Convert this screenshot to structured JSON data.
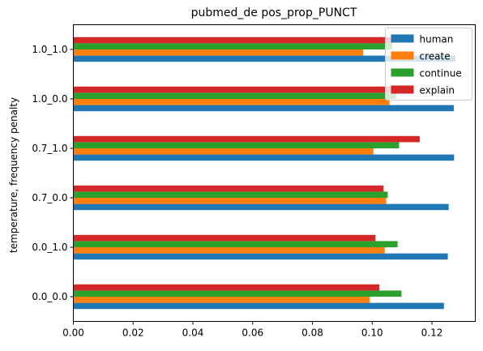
{
  "chart_data": {
    "type": "bar",
    "orientation": "horizontal",
    "title": "pubmed_de pos_prop_PUNCT",
    "xlabel": "",
    "ylabel": "temperature, frequency penalty",
    "categories": [
      "0.0_0.0",
      "0.0_1.0",
      "0.7_0.0",
      "0.7_1.0",
      "1.0_0.0",
      "1.0_1.0"
    ],
    "xlim": [
      0,
      0.1345
    ],
    "xticks": [
      "0.00",
      "0.02",
      "0.04",
      "0.06",
      "0.08",
      "0.10",
      "0.12"
    ],
    "xtick_values": [
      0,
      0.02,
      0.04,
      0.06,
      0.08,
      0.1,
      0.12
    ],
    "grid": false,
    "legend_position": "top-right",
    "series": [
      {
        "name": "human",
        "color": "#1f77b4",
        "values": [
          0.124,
          0.1253,
          0.1256,
          0.1274,
          0.1273,
          0.1279
        ]
      },
      {
        "name": "create",
        "color": "#ff7f0e",
        "values": [
          0.0992,
          0.1042,
          0.1047,
          0.1004,
          0.1058,
          0.097
        ]
      },
      {
        "name": "continue",
        "color": "#2ca02c",
        "values": [
          0.1098,
          0.1085,
          0.1052,
          0.109,
          0.108,
          0.1067
        ]
      },
      {
        "name": "explain",
        "color": "#d62728",
        "values": [
          0.1024,
          0.1011,
          0.1038,
          0.1159,
          0.1083,
          0.107
        ]
      }
    ]
  }
}
